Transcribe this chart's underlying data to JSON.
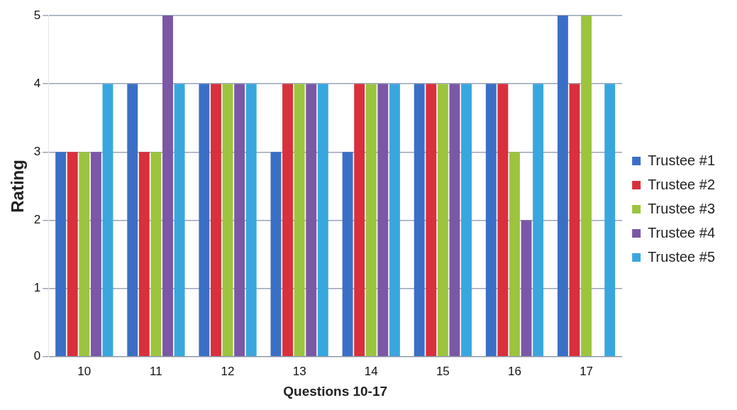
{
  "chart_data": {
    "type": "bar",
    "xlabel": "Questions 10-17",
    "ylabel": "Rating",
    "categories": [
      "10",
      "11",
      "12",
      "13",
      "14",
      "15",
      "16",
      "17"
    ],
    "series": [
      {
        "name": "Trustee #1",
        "color": "#3b6fc6",
        "values": [
          3,
          4,
          4,
          3,
          3,
          4,
          4,
          5
        ]
      },
      {
        "name": "Trustee #2",
        "color": "#d9303c",
        "values": [
          3,
          3,
          4,
          4,
          4,
          4,
          4,
          4
        ]
      },
      {
        "name": "Trustee #3",
        "color": "#9cc43f",
        "values": [
          3,
          3,
          4,
          4,
          4,
          4,
          3,
          5
        ]
      },
      {
        "name": "Trustee #4",
        "color": "#7b58a6",
        "values": [
          3,
          5,
          4,
          4,
          4,
          4,
          2,
          0
        ]
      },
      {
        "name": "Trustee #5",
        "color": "#39a7de",
        "values": [
          4,
          4,
          4,
          4,
          4,
          4,
          4,
          4
        ]
      }
    ],
    "ylim": [
      0,
      5
    ],
    "yticks": [
      0,
      1,
      2,
      3,
      4,
      5
    ],
    "grid": "y",
    "legend": "right"
  }
}
